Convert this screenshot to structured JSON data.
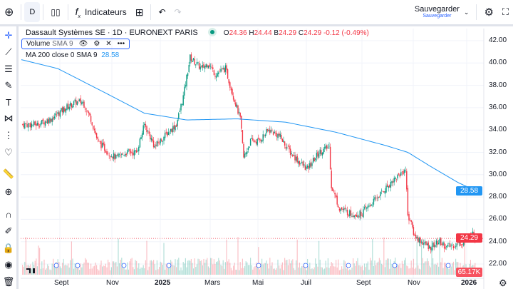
{
  "toolbar": {
    "interval": "D",
    "indicators_label": "Indicateurs",
    "save_label": "Sauvegarder",
    "save_sub": "Sauvegarder"
  },
  "legend": {
    "title": "Dassault Systèmes SE · 1D · EURONEXT PARIS",
    "o_label": "O",
    "o": "24.36",
    "h_label": "H",
    "h": "24.44",
    "b_label": "B",
    "b": "24.29",
    "c_label": "C",
    "c": "24.29",
    "change": "-0.12 (-0.49%)"
  },
  "volume_legend": {
    "label": "Volume",
    "sub": "SMA 9"
  },
  "ma_legend": {
    "label": "MA 200 close 0 SMA 9",
    "value": "28.58"
  },
  "price_axis": [
    "42.00",
    "40.00",
    "38.00",
    "36.00",
    "34.00",
    "32.00",
    "30.00",
    "28.00",
    "26.00",
    "24.00",
    "22.00"
  ],
  "time_axis": [
    "Sept",
    "Nov",
    "2025",
    "Mars",
    "Mai",
    "Juil",
    "Sept",
    "Nov",
    "2026"
  ],
  "tags": {
    "ma": "28.58",
    "last": "24.29",
    "volume": "65.17K"
  },
  "colors": {
    "up": "#089981",
    "down": "#f23645",
    "ma": "#2196f3",
    "accent": "#2962ff"
  },
  "chart_data": {
    "type": "candlestick",
    "price_range": [
      21.5,
      42.5
    ],
    "close_anchors": [
      [
        1,
        34.5
      ],
      [
        14,
        34.5
      ],
      [
        26,
        35
      ],
      [
        39,
        36
      ],
      [
        48,
        36.5
      ],
      [
        54,
        36.5
      ],
      [
        61,
        35
      ],
      [
        67,
        33
      ],
      [
        76,
        32
      ],
      [
        83,
        31.5
      ],
      [
        92,
        32
      ],
      [
        101,
        32
      ],
      [
        108,
        34.5
      ],
      [
        117,
        32.5
      ],
      [
        126,
        33.5
      ],
      [
        136,
        34.5
      ],
      [
        142,
        37
      ],
      [
        148,
        40.5
      ],
      [
        158,
        39.5
      ],
      [
        164,
        40
      ],
      [
        170,
        39
      ],
      [
        179,
        39.5
      ],
      [
        186,
        37
      ],
      [
        192,
        35
      ],
      [
        195,
        31.5
      ],
      [
        201,
        33
      ],
      [
        208,
        33
      ],
      [
        217,
        34
      ],
      [
        226,
        33.5
      ],
      [
        236,
        32
      ],
      [
        245,
        31
      ],
      [
        251,
        30.5
      ],
      [
        261,
        32
      ],
      [
        270,
        32.5
      ],
      [
        272,
        29
      ],
      [
        279,
        27
      ],
      [
        289,
        26.5
      ],
      [
        298,
        26.5
      ],
      [
        308,
        27.5
      ],
      [
        317,
        28.5
      ],
      [
        326,
        29.5
      ],
      [
        337,
        30.5
      ],
      [
        339,
        26.5
      ],
      [
        345,
        24.5
      ],
      [
        351,
        24
      ],
      [
        358,
        23.5
      ],
      [
        367,
        24
      ],
      [
        373,
        23.5
      ],
      [
        383,
        23.8
      ],
      [
        389,
        24
      ],
      [
        395,
        24.8
      ],
      [
        398,
        24.29
      ]
    ],
    "ma200_anchors": [
      [
        0,
        40.3
      ],
      [
        32,
        39.5
      ],
      [
        76,
        37.2
      ],
      [
        108,
        35.5
      ],
      [
        145,
        34.9
      ],
      [
        189,
        35
      ],
      [
        232,
        34.7
      ],
      [
        276,
        33.8
      ],
      [
        320,
        32.6
      ],
      [
        339,
        32
      ],
      [
        358,
        30.8
      ],
      [
        383,
        29.3
      ],
      [
        398,
        28.58
      ]
    ]
  }
}
